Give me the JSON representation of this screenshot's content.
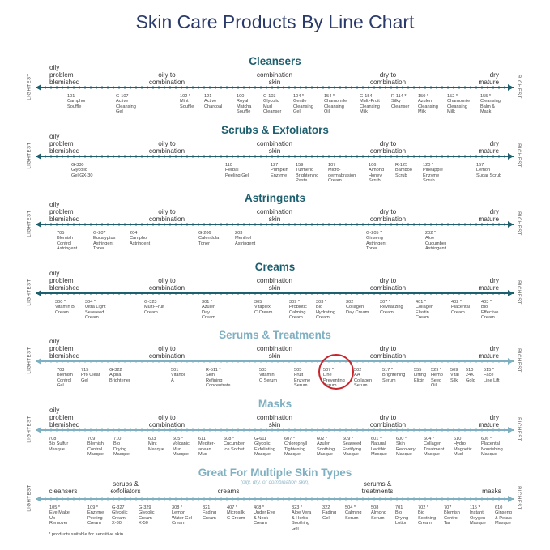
{
  "title": "Skin Care Products By Line Chart",
  "end_labels": {
    "left": "LIGHTEST",
    "right": "RICHEST"
  },
  "skin_types": {
    "oily_problem": "oily\nproblem\nblemished",
    "oily_combo": "oily to\ncombination",
    "combo": "combination\nskin",
    "dry_combo": "dry to\ncombination",
    "dry_mature": "dry\nmature"
  },
  "sections": [
    {
      "title": "Cleansers",
      "products": [
        "101\nCamphor\nSouffle",
        "G-107\nActive\nCleansing\nGel",
        "102 *\nMint\nSouffle",
        "121\nActive\nCharcoal",
        "100\nRoyal\nMatcha\nSouffle",
        "G-103\nGlycolic\nMud\nCleanser",
        "104 *\nGentle\nCleansing\nGel",
        "154 *\nChamomile\nCleansing\nOil",
        "G-154\nMulti-Fruit\nCleansing\nMilk",
        "R-114 *\nSilky\nCleanser",
        "150 *\nAzulen\nCleansing\nMilk",
        "152 *\nChamomile\nCleansing\nMilk",
        "155 *\nCleansing\nBalm &\nMask"
      ]
    },
    {
      "title": "Scrubs & Exfoliators",
      "products": [
        "G-330\nGlycolic\nGel GX-30",
        "110\nHerbal\nPeeling Gel",
        "127\nPumpkin\nEnzyme",
        "159\nTurmeric\nBrightening\nPaste",
        "107\nMicro-\ndermabrasion\nCream",
        "106\nAlmond\nHoney\nScrub",
        "R-125\nBamboo\nScrub",
        "120 *\nPineapple\nEnzyme\nScrub",
        "157\nLemon\nSugar Scrub"
      ]
    },
    {
      "title": "Astringents",
      "products": [
        "705\nBlemish\nControl\nAstringent",
        "G-207\nEucalyptus\nAstringent\nToner",
        "204\nCamphor\nAstringent",
        "G-206\nCalendula\nToner",
        "203\nMenthol\nAstringent",
        "G-205 *\nGinseng\nAstringent\nToner",
        "202 *\nAloe\nCucumber\nAstringent"
      ]
    },
    {
      "title": "Creams",
      "products": [
        "300 *\nVitamin B\nCream",
        "304 *\nUltra Light\nSeaweed\nCream",
        "G-323\nMulti-Fruit\nCream",
        "301 *\nAzulen\nDay\nCream",
        "305\nVitaplex\nC Cream",
        "309 *\nProbiotic\nCalming\nCream",
        "303 *\nBio\nHydrating\nCream",
        "302\nCollagen\nDay Cream",
        "307 *\nRevitalizing\nCream",
        "401 *\nCollagen\nElastin\nCream",
        "402 *\nPlacental\nCream",
        "403 *\nBio\nEffective\nCream"
      ]
    },
    {
      "title": "Serums & Treatments",
      "products": [
        "703\nBlemish\nControl\nGel",
        "715\nPro Clear\nGel",
        "G-322\nAlpha\nBrightener",
        "501\nVitanol\nA",
        "R-511 *\nSkin\nRefining\nConcentrate",
        "503\nVitamin\nC Serum",
        "505\nFruit\nEnzyme\nSerum",
        "507 *\nLine\nPreventing\nSerum",
        "502\nAA\nCollagen\nSerum",
        "517 *\nBrightening\nSerum",
        "555\nLifting\nElixir",
        "529 *\nHemp\nSeed\nOil",
        "509\nVital\nSilk",
        "510\n24K\nGold",
        "515 *\nFace\nLine Lift"
      ]
    },
    {
      "title": "Masks",
      "products": [
        "708\nBio Sulfur\nMasque",
        "709\nBlemish\nControl\nMasque",
        "710\nBio\nDrying\nMasque",
        "603\nMint\nMasque",
        "605 *\nVolcanic\nMud\nMasque",
        "611\nMediter-\nanean\nMud",
        "608 *\nCucumber\nIce Sorbet",
        "G-611\nGlycolic\nExfoliating\nMasque",
        "607 *\nChlorophyll\nTightening\nMasque",
        "602 *\nAzulen\nSoothing\nMasque",
        "609 *\nSeaweed\nFortifying\nMasque",
        "601 *\nNatural\nLecithin\nMasque",
        "600 *\nSkin\nRecovery\nMasque",
        "604 *\nCollagen\nTreatment\nMasque",
        "610\nHydro\nMagnetic\nMud",
        "606 *\nPlacental\nNourishing\nMasque"
      ]
    },
    {
      "title": "Great For Multiple Skin Types",
      "subtitle": "(oily, dry, or combination skin)",
      "categories": [
        "cleansers",
        "scrubs &\nexfoliators",
        "creams",
        "serums &\ntreatments",
        "masks"
      ],
      "products": [
        "105 *\nEye Make\nUp\nRemover",
        "109 *\nEnzyme\nPeeling\nCream",
        "G-327\nGlycolic\nCream\nX-30",
        "G-329\nGlycolic\nCream\nX-50",
        "308 *\nLemon\nWater Gel\nCream",
        "321\nFading\nCream",
        "407 *\nMicrosilk\nC Cream",
        "408 *\nUnder Eye\n& Neck\nCream",
        "323 *\nAloe Vera\n& Herbs\nSoothing\nGel",
        "322\nFading\nGel",
        "504 *\nCalming\nSerum",
        "508\nAlmond\nSerum",
        "701\nBio\nDrying\nLotion",
        "702 *\nBio\nSoothing\nCream",
        "707\nBlemish\nControl\nTar",
        "115 *\nInstant\nOxygen\nMasque",
        "610\nGinseng\n& Petals\nMasque"
      ]
    }
  ],
  "footnote": "* products suitable for sensitive skin",
  "colors": {
    "title": "#2a3a6b",
    "line_dark": "#1d5f6e",
    "line_light": "#7fb0c2",
    "highlight": "#c8242b"
  }
}
